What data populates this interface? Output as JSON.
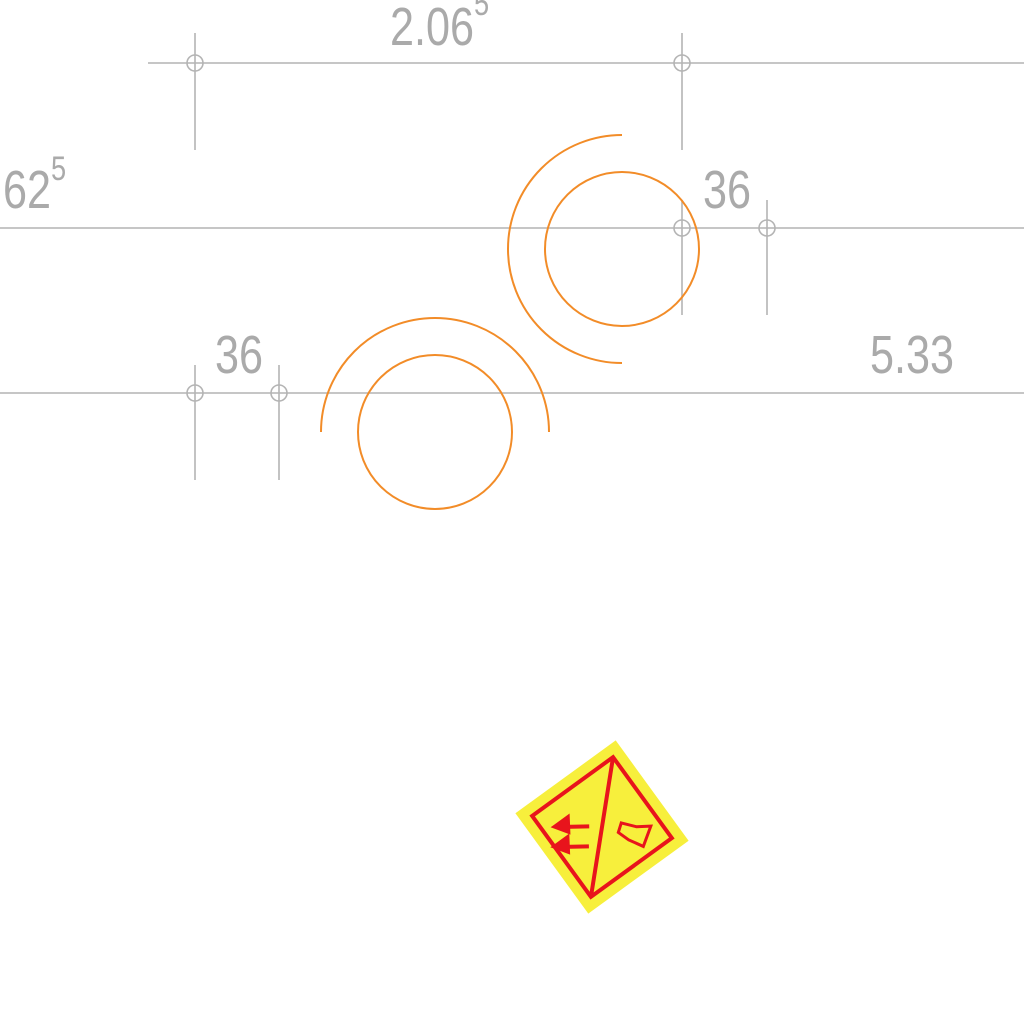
{
  "dimensions": [
    {
      "text": "2.06",
      "sup": "5"
    },
    {
      "text": "62",
      "sup": "5"
    },
    {
      "text": "36"
    },
    {
      "text": "36"
    },
    {
      "text": "5.33"
    }
  ]
}
